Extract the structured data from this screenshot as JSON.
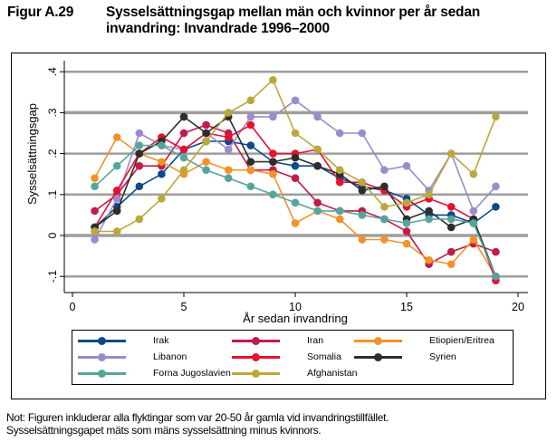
{
  "figure": {
    "number": "Figur A.29",
    "title": "Sysselsättningsgap mellan män och kvinnor per år sedan invandring: Invandrade 1996–2000"
  },
  "note": {
    "line1": "Not: Figuren inkluderar alla flyktingar som var 20-50 år gamla vid invandringstillfället.",
    "line2": "Sysselsättningsgapet mäts som mäns sysselsättning minus kvinnors."
  },
  "chart_data": {
    "type": "line",
    "title": "Sysselsättningsgap mellan män och kvinnor per år sedan invandring: Invandrade 1996–2000",
    "xlabel": "År sedan invandring",
    "ylabel": "Sysselsättningsgap",
    "xlim": [
      0,
      20
    ],
    "ylim": [
      -0.1,
      0.4
    ],
    "x_ticks": [
      0,
      5,
      10,
      15,
      20
    ],
    "x_tick_labels": [
      "0",
      "5",
      "10",
      "15",
      "20"
    ],
    "y_ticks": [
      -0.1,
      0,
      0.1,
      0.2,
      0.3,
      0.4
    ],
    "y_tick_labels": [
      "-.1",
      "0",
      ".1",
      ".2",
      ".3",
      ".4"
    ],
    "grid": true,
    "legend_position": "bottom",
    "x": [
      1,
      2,
      3,
      4,
      5,
      6,
      7,
      8,
      9,
      10,
      11,
      12,
      13,
      14,
      15,
      16,
      17,
      18,
      19
    ],
    "series": [
      {
        "name": "Irak",
        "color": "#0b4a8b",
        "values": [
          0.02,
          0.07,
          0.12,
          0.15,
          0.21,
          0.23,
          0.23,
          0.22,
          0.18,
          0.17,
          0.17,
          0.14,
          0.12,
          0.11,
          0.09,
          0.05,
          0.05,
          0.03,
          0.07
        ]
      },
      {
        "name": "Iran",
        "color": "#c11b46",
        "values": [
          0.06,
          0.1,
          0.17,
          0.17,
          0.25,
          0.27,
          0.25,
          0.16,
          0.16,
          0.14,
          0.08,
          0.06,
          0.06,
          0.04,
          0.01,
          -0.07,
          -0.04,
          -0.02,
          -0.04
        ]
      },
      {
        "name": "Etiopien/Eritrea",
        "color": "#f39229",
        "values": [
          0.14,
          0.24,
          0.2,
          0.18,
          0.15,
          0.18,
          0.16,
          0.16,
          0.15,
          0.03,
          0.06,
          0.04,
          -0.01,
          -0.01,
          -0.02,
          -0.06,
          -0.07,
          -0.01,
          -0.1
        ]
      },
      {
        "name": "Libanon",
        "color": "#9b8bcc",
        "values": [
          -0.01,
          0.09,
          0.25,
          0.22,
          0.21,
          0.25,
          0.21,
          0.29,
          0.29,
          0.33,
          0.29,
          0.25,
          0.25,
          0.16,
          0.17,
          0.11,
          0.2,
          0.06,
          0.12
        ]
      },
      {
        "name": "Somalia",
        "color": "#e8112d",
        "values": [
          0.02,
          0.11,
          0.2,
          0.24,
          0.21,
          0.25,
          0.24,
          0.27,
          0.2,
          0.2,
          0.21,
          0.13,
          0.13,
          0.11,
          0.07,
          0.09,
          0.07,
          0.04,
          -0.11
        ]
      },
      {
        "name": "Syrien",
        "color": "#2d2d2d",
        "values": [
          0.02,
          0.06,
          0.2,
          0.23,
          0.29,
          0.25,
          0.29,
          0.18,
          0.18,
          0.19,
          0.17,
          0.15,
          0.11,
          0.12,
          0.04,
          0.06,
          0.02,
          0.04,
          -0.1
        ]
      },
      {
        "name": "Forna Jugoslavien",
        "color": "#56a59c",
        "values": [
          0.12,
          0.17,
          0.22,
          0.22,
          0.19,
          0.16,
          0.14,
          0.12,
          0.1,
          0.08,
          0.06,
          0.06,
          0.05,
          0.04,
          0.03,
          0.04,
          0.04,
          0.03,
          -0.1
        ]
      },
      {
        "name": "Afghanistan",
        "color": "#bba83c",
        "values": [
          0.01,
          0.01,
          0.04,
          0.09,
          0.16,
          0.23,
          0.3,
          0.33,
          0.38,
          0.25,
          0.21,
          0.16,
          0.13,
          0.07,
          0.08,
          0.1,
          0.2,
          0.15,
          0.29
        ]
      }
    ]
  }
}
